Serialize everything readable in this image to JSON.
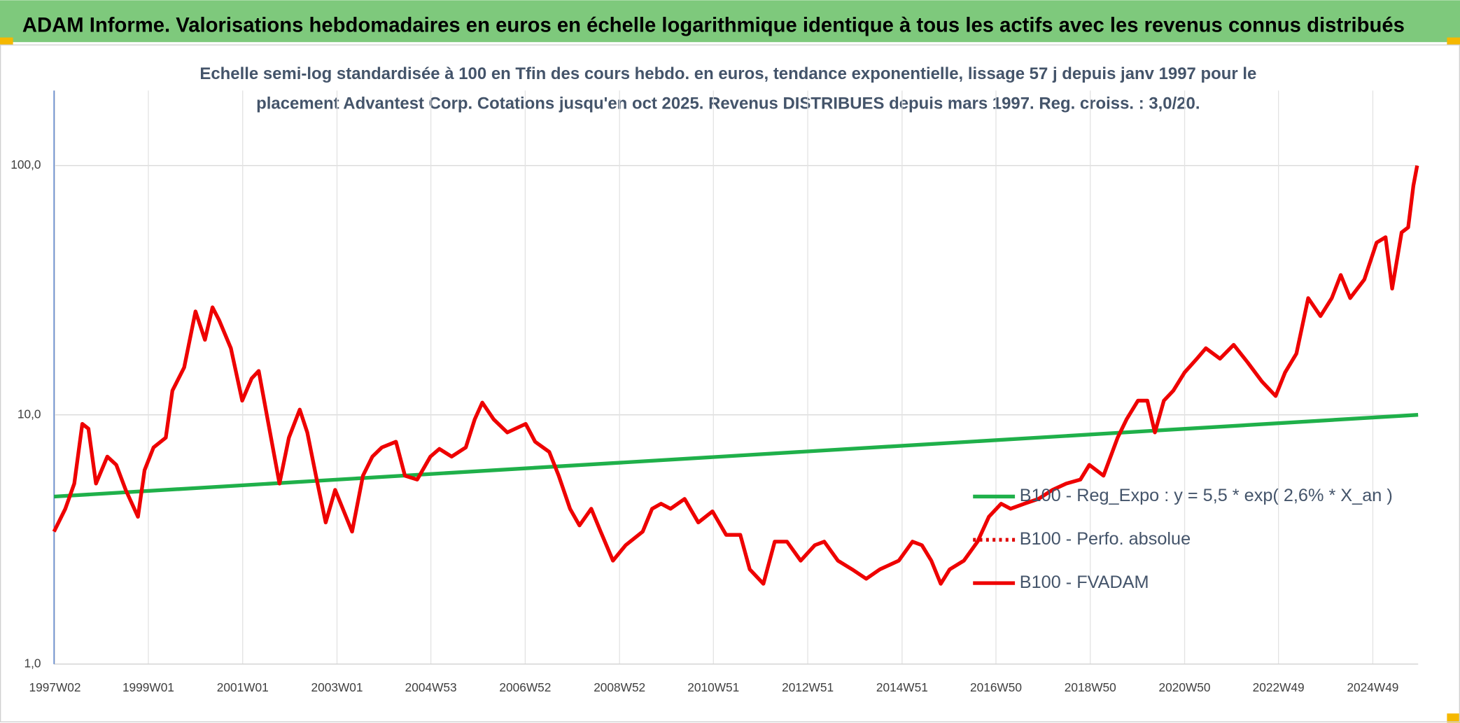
{
  "header": "ADAM Informe. Valorisations hebdomadaires en euros en échelle logarithmique identique à tous les actifs avec les revenus connus distribués",
  "chart_data": {
    "type": "line",
    "title": [
      "Echelle semi-log standardisée à 100 en Tfin des cours hebdo. en euros, tendance exponentielle, lissage 57 j depuis janv 1997 pour le",
      "placement Advantest Corp. Cotations jusqu'en oct 2025. Revenus DISTRIBUES depuis mars 1997. Reg. croiss. : 3,0/20."
    ],
    "log_y": true,
    "grid": true,
    "legend": "right",
    "xlim": [
      1997.0,
      2025.92
    ],
    "ylim": [
      1,
      200
    ],
    "yticks": [
      {
        "value": 1,
        "label": "1,0"
      },
      {
        "value": 10,
        "label": "10,0"
      },
      {
        "value": 100,
        "label": "100,0"
      }
    ],
    "xticks": [
      {
        "value": 1997.02,
        "label": "1997W02"
      },
      {
        "value": 1999.0,
        "label": "1999W01"
      },
      {
        "value": 2001.0,
        "label": "2001W01"
      },
      {
        "value": 2003.0,
        "label": "2003W01"
      },
      {
        "value": 2004.99,
        "label": "2004W53"
      },
      {
        "value": 2006.99,
        "label": "2006W52"
      },
      {
        "value": 2008.99,
        "label": "2008W52"
      },
      {
        "value": 2010.98,
        "label": "2010W51"
      },
      {
        "value": 2012.98,
        "label": "2012W51"
      },
      {
        "value": 2014.98,
        "label": "2014W51"
      },
      {
        "value": 2016.97,
        "label": "2016W50"
      },
      {
        "value": 2018.97,
        "label": "2018W50"
      },
      {
        "value": 2020.97,
        "label": "2020W50"
      },
      {
        "value": 2022.96,
        "label": "2022W49"
      },
      {
        "value": 2024.96,
        "label": "2024W49"
      }
    ],
    "series": [
      {
        "name": "B100 - Reg_Expo : y = 5,5 * exp( 2,6% *  X_an )",
        "color": "#1fb04a",
        "line_style": "solid",
        "x": [
          1997.0,
          2025.92
        ],
        "values": [
          4.7,
          10.0
        ]
      },
      {
        "name": "B100 - Perfo. absolue",
        "color": "#e00000",
        "line_style": "dotted",
        "x": [],
        "values": []
      },
      {
        "name": "B100 - FVADAM",
        "color": "#ee0000",
        "line_style": "solid",
        "x": [
          1997.0,
          1997.24,
          1997.43,
          1997.6,
          1997.73,
          1997.89,
          1998.13,
          1998.32,
          1998.52,
          1998.78,
          1998.92,
          1999.11,
          1999.37,
          1999.51,
          1999.76,
          2000.0,
          2000.2,
          2000.36,
          2000.5,
          2000.75,
          2000.99,
          2001.19,
          2001.34,
          2001.58,
          2001.78,
          2001.98,
          2002.21,
          2002.37,
          2002.57,
          2002.76,
          2002.96,
          2003.32,
          2003.55,
          2003.75,
          2003.95,
          2004.25,
          2004.44,
          2004.7,
          2004.98,
          2005.17,
          2005.43,
          2005.73,
          2005.92,
          2006.08,
          2006.32,
          2006.61,
          2007.0,
          2007.2,
          2007.5,
          2007.7,
          2007.94,
          2008.14,
          2008.39,
          2008.59,
          2008.85,
          2009.12,
          2009.48,
          2009.68,
          2009.87,
          2010.07,
          2010.37,
          2010.66,
          2010.96,
          2011.25,
          2011.55,
          2011.75,
          2012.04,
          2012.28,
          2012.54,
          2012.83,
          2013.13,
          2013.33,
          2013.62,
          2013.92,
          2014.22,
          2014.51,
          2014.91,
          2015.2,
          2015.4,
          2015.6,
          2015.8,
          2015.99,
          2016.29,
          2016.58,
          2016.82,
          2017.08,
          2017.28,
          2017.57,
          2017.87,
          2018.17,
          2018.46,
          2018.76,
          2018.95,
          2019.25,
          2019.55,
          2019.74,
          2019.98,
          2020.18,
          2020.34,
          2020.53,
          2020.73,
          2020.97,
          2021.23,
          2021.42,
          2021.72,
          2022.01,
          2022.31,
          2022.61,
          2022.9,
          2023.1,
          2023.34,
          2023.59,
          2023.85,
          2024.09,
          2024.28,
          2024.48,
          2024.78,
          2025.04,
          2025.23,
          2025.37,
          2025.57,
          2025.71,
          2025.82,
          2025.9
        ],
        "values": [
          3.4,
          4.2,
          5.3,
          9.2,
          8.8,
          5.3,
          6.8,
          6.3,
          5.0,
          3.9,
          6.0,
          7.4,
          8.1,
          12.5,
          15.5,
          26,
          20,
          27,
          24,
          18.5,
          11.4,
          14,
          15,
          8.5,
          5.3,
          8.1,
          10.5,
          8.5,
          5.5,
          3.7,
          5.0,
          3.4,
          5.7,
          6.8,
          7.4,
          7.8,
          5.7,
          5.5,
          6.8,
          7.3,
          6.8,
          7.4,
          9.6,
          11.2,
          9.6,
          8.5,
          9.2,
          7.8,
          7.1,
          5.7,
          4.2,
          3.6,
          4.2,
          3.4,
          2.6,
          3.0,
          3.4,
          4.2,
          4.4,
          4.2,
          4.6,
          3.7,
          4.1,
          3.3,
          3.3,
          2.4,
          2.1,
          3.1,
          3.1,
          2.6,
          3.0,
          3.1,
          2.6,
          2.4,
          2.2,
          2.4,
          2.6,
          3.1,
          3.0,
          2.6,
          2.1,
          2.4,
          2.6,
          3.1,
          3.9,
          4.4,
          4.2,
          4.4,
          4.6,
          5.0,
          5.3,
          5.5,
          6.3,
          5.7,
          8.1,
          9.6,
          11.4,
          11.4,
          8.5,
          11.4,
          12.5,
          14.8,
          16.8,
          18.5,
          16.8,
          19.1,
          16.2,
          13.6,
          11.9,
          14.8,
          17.6,
          29.4,
          24.9,
          29.4,
          36.4,
          29.4,
          34.9,
          49.1,
          51.6,
          32.1,
          53.9,
          56.5,
          83,
          100
        ]
      }
    ]
  }
}
